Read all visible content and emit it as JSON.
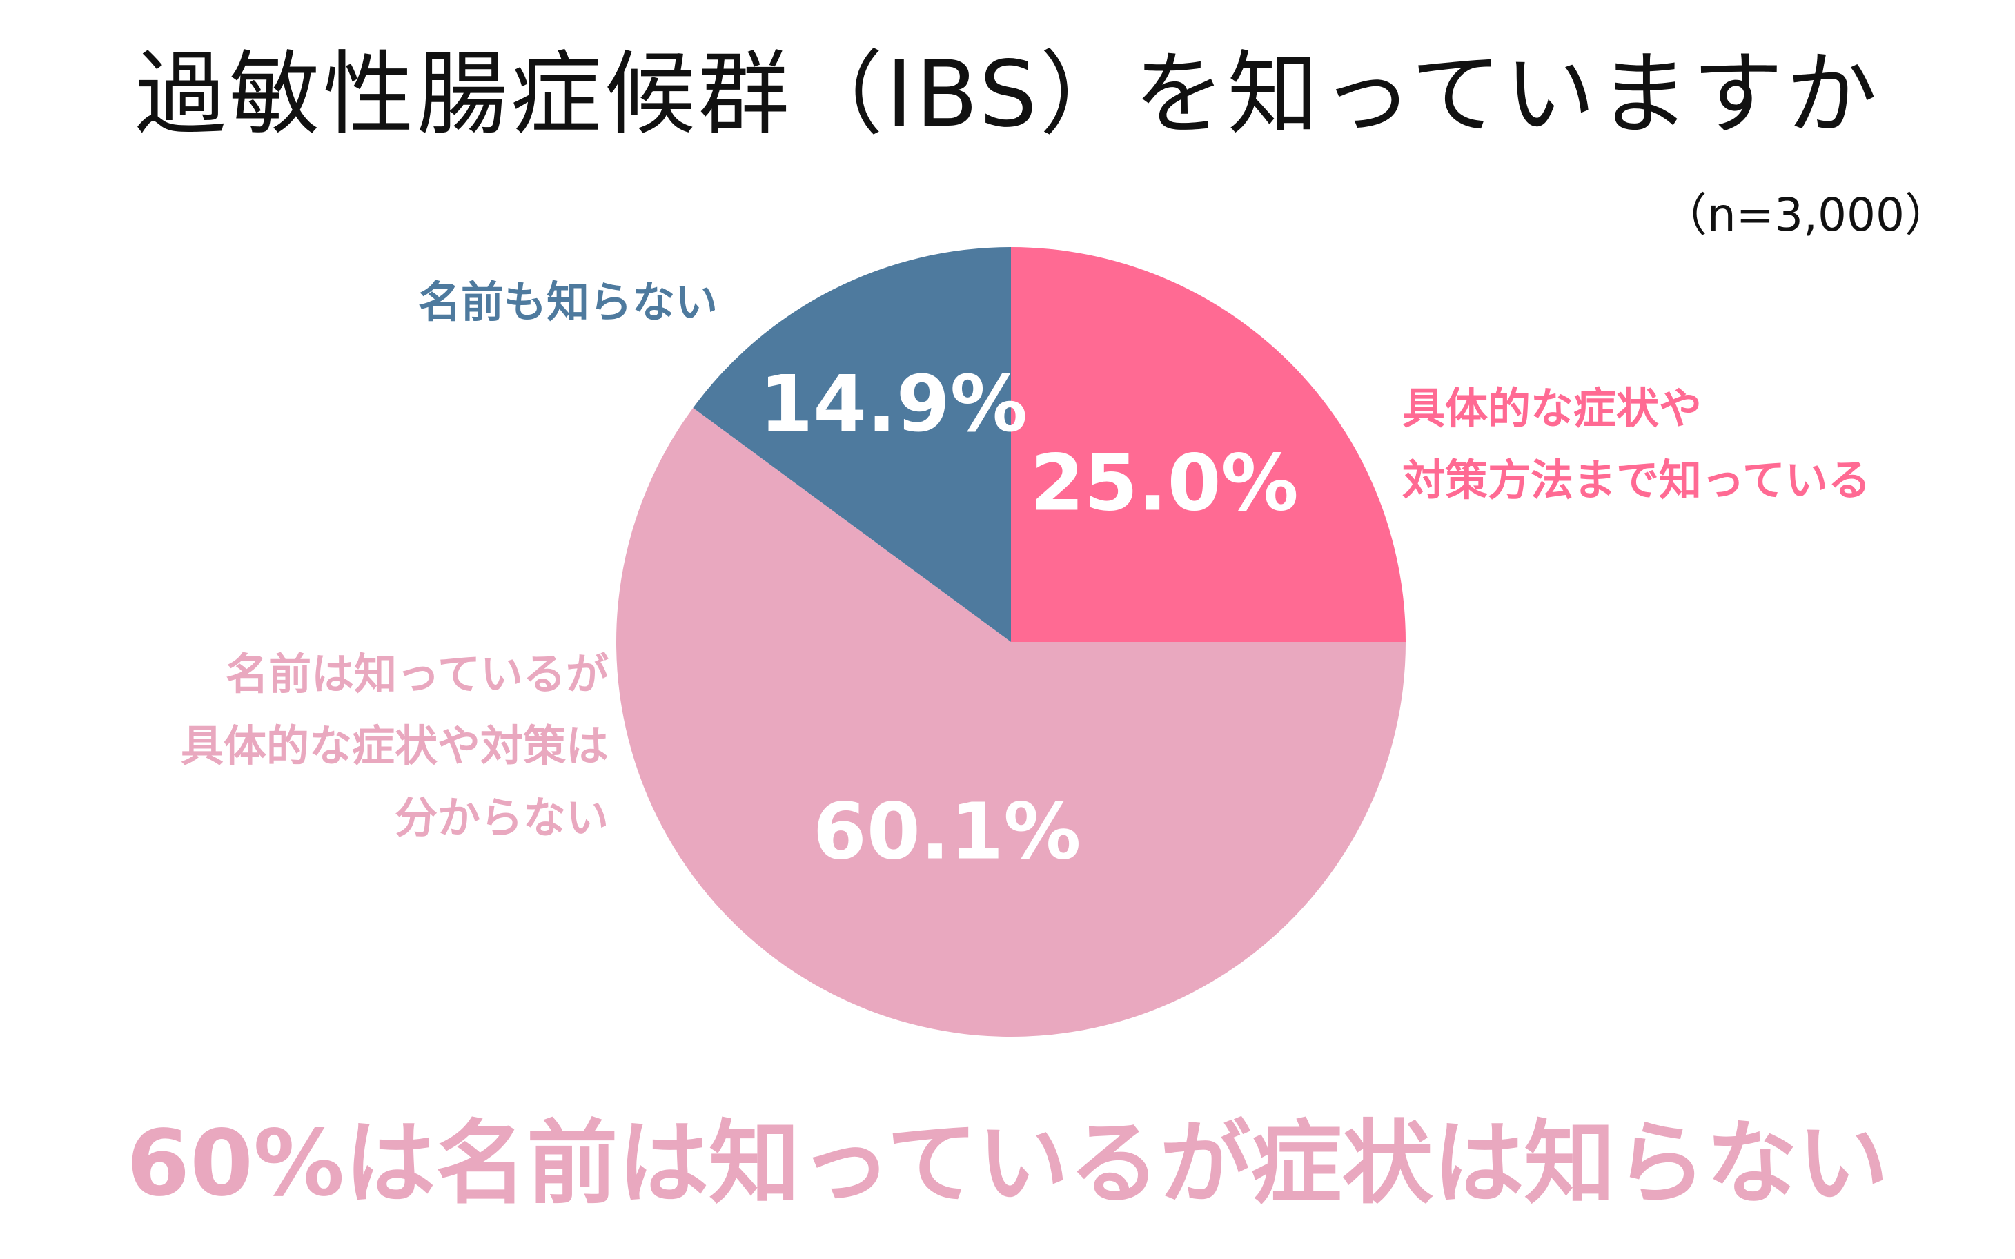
{
  "title": "過敏性腸症候群（IBS）を知っていますか",
  "sample_note": "（n=3,000）",
  "headline": "60%は名前は知っているが症状は知らない",
  "chart_data": {
    "type": "pie",
    "title": "過敏性腸症候群（IBS）を知っていますか",
    "slices": [
      {
        "label_lines": [
          "具体的な症状や",
          "対策方法まで知っている"
        ],
        "value": 25.0,
        "value_label": "25.0%",
        "color": "#ff6a93"
      },
      {
        "label_lines": [
          "名前は知っているが",
          "具体的な症状や対策は",
          "分からない"
        ],
        "value": 60.1,
        "value_label": "60.1%",
        "color": "#e9a8bf"
      },
      {
        "label_lines": [
          "名前も知らない"
        ],
        "value": 14.9,
        "value_label": "14.9%",
        "color": "#4e7a9e"
      }
    ]
  }
}
